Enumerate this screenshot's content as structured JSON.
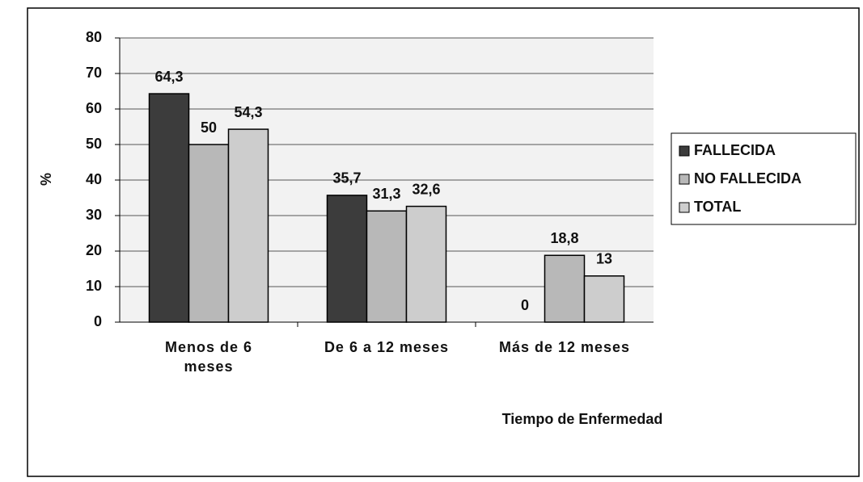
{
  "chart_data": {
    "type": "bar",
    "y_label": "%",
    "x_label": "Tiempo de Enfermedad",
    "categories": [
      "Menos de 6 meses",
      "De 6 a 12 meses",
      "Más de 12 meses"
    ],
    "series": [
      {
        "name": "FALLECIDA",
        "color": "#3c3c3c",
        "values": [
          64.3,
          35.7,
          0
        ],
        "value_labels": [
          "64,3",
          "35,7",
          "0"
        ]
      },
      {
        "name": "NO FALLECIDA",
        "color": "#b8b8b8",
        "values": [
          50,
          31.3,
          18.8
        ],
        "value_labels": [
          "50",
          "31,3",
          "18,8"
        ]
      },
      {
        "name": "TOTAL",
        "color": "#cdcdcd",
        "values": [
          54.3,
          32.6,
          13
        ],
        "value_labels": [
          "54,3",
          "32,6",
          "13"
        ]
      }
    ],
    "ylim": [
      0,
      80
    ],
    "yticks": [
      0,
      10,
      20,
      30,
      40,
      50,
      60,
      70,
      80
    ],
    "grid": true,
    "legend": "right"
  }
}
